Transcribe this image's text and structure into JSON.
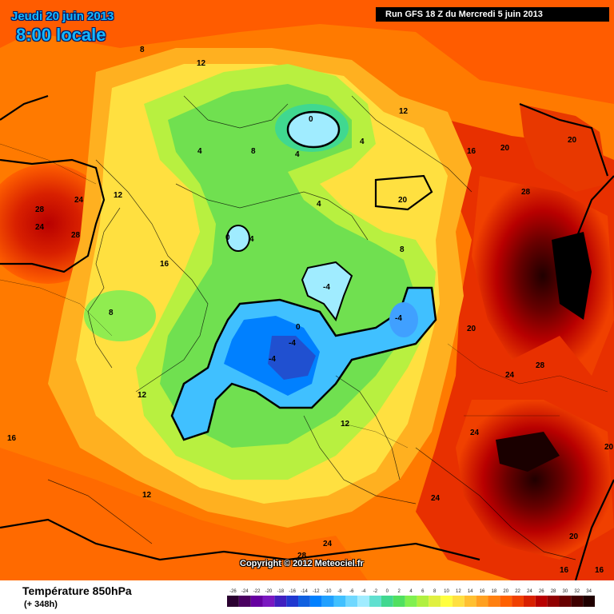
{
  "header": {
    "date": "Jeudi 20 juin 2013",
    "time": "8:00 locale",
    "run": "Run GFS 18 Z du Mercredi 5 juin 2013"
  },
  "footer": {
    "variable": "Température 850hPa",
    "lead": "(+ 348h)",
    "copyright": "Copyright © 2012 Meteociel.fr"
  },
  "colors": {
    "ocean": "#ff8a00",
    "cold": "#0080ff",
    "hot": "#a00000",
    "neutral": "#ffff66"
  },
  "scale": {
    "ticks": [
      "-26",
      "-24",
      "-22",
      "-20",
      "-18",
      "-16",
      "-14",
      "-12",
      "-10",
      "-8",
      "-6",
      "-4",
      "-2",
      "0",
      "2",
      "4",
      "6",
      "8",
      "10",
      "12",
      "14",
      "16",
      "18",
      "20",
      "22",
      "24",
      "26",
      "28",
      "30",
      "32",
      "34"
    ],
    "colors": [
      "#2a0030",
      "#4a0060",
      "#6600a0",
      "#7a18c0",
      "#4020c0",
      "#2038d0",
      "#1060e0",
      "#0080ff",
      "#20a0ff",
      "#40c0ff",
      "#70d8ff",
      "#a0ecff",
      "#60e0d0",
      "#40d890",
      "#50e060",
      "#80f050",
      "#b0f040",
      "#e0f040",
      "#ffff40",
      "#ffe040",
      "#ffc030",
      "#ffa020",
      "#ff8010",
      "#ff6000",
      "#f04000",
      "#d82000",
      "#b80000",
      "#900000",
      "#680000",
      "#400000",
      "#200000"
    ]
  },
  "map_labels": [
    "Jeudi 20 juin 2013",
    "8",
    "12",
    "0",
    "4",
    "4",
    "4",
    "12",
    "16",
    "20",
    "20",
    "20",
    "24",
    "28",
    "24",
    "28",
    "12",
    "8",
    "4",
    "4",
    "8",
    "16",
    "0",
    "-4",
    "-4",
    "0",
    "-4",
    "-4",
    "28",
    "20",
    "24",
    "28",
    "24",
    "20",
    "24",
    "16",
    "12",
    "12",
    "8",
    "12",
    "20",
    "24",
    "28",
    "16",
    "16"
  ]
}
